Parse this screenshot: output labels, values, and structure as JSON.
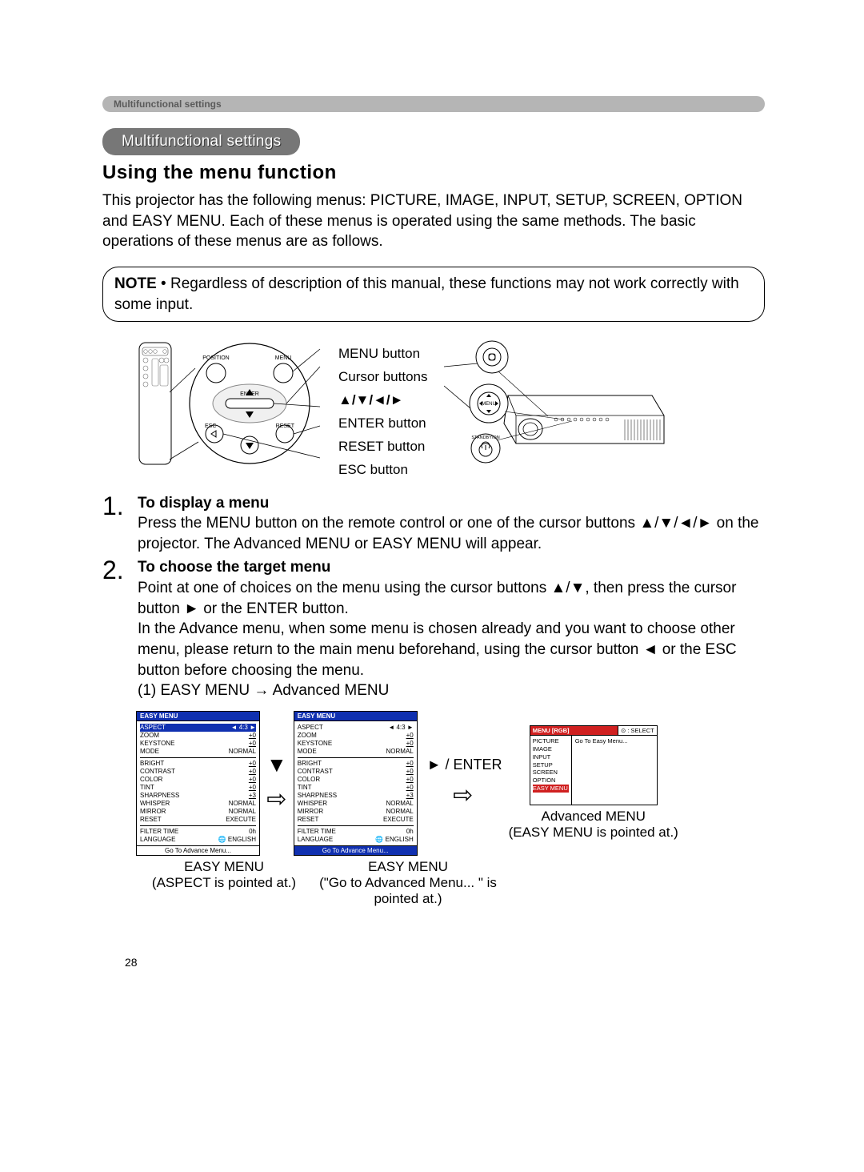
{
  "tab_label": "Multifunctional settings",
  "pill_label": "Multifunctional settings",
  "heading": "Using the menu function",
  "intro": "This projector has the following menus: PICTURE, IMAGE, INPUT, SETUP, SCREEN, OPTION and EASY MENU. Each of these menus is operated using the same methods. The basic operations of these menus are as follows.",
  "note_label": "NOTE",
  "note_text": " • Regardless of description of this manual, these functions may not work correctly with some input.",
  "diagram_labels": {
    "menu": "MENU button",
    "cursor": "Cursor buttons",
    "arrows": "▲/▼/◄/►",
    "enter": "ENTER button",
    "reset": "RESET button",
    "esc": "ESC button"
  },
  "remote_labels": {
    "position": "POSITION",
    "menu": "MENU",
    "enter": "ENTER",
    "esc": "ESC",
    "reset": "RESET"
  },
  "proj_labels": {
    "menu": "MENU",
    "standby": "STANDBY/ON"
  },
  "steps": [
    {
      "num": "1.",
      "title": "To display a menu",
      "body": "Press the MENU button on the remote control or one of the cursor buttons ▲/▼/◄/► on the projector. The Advanced MENU or EASY MENU will appear."
    },
    {
      "num": "2.",
      "title": "To choose the target menu",
      "body": "Point at one of choices on the menu using the cursor buttons ▲/▼, then press the cursor button ► or the ENTER button.\nIn the Advance menu, when some menu is chosen already and you want to choose other menu, please return to the main menu beforehand, using the cursor button ◄ or the ESC button before choosing the menu.\n(1) EASY MENU → Advanced MENU"
    }
  ],
  "easy_menu": {
    "title": "EASY MENU",
    "rows": [
      {
        "l": "ASPECT",
        "r": "◄   4:3   ►"
      },
      {
        "l": "ZOOM",
        "r": "+0",
        "u": true
      },
      {
        "l": "KEYSTONE",
        "r": "+0",
        "u": true
      },
      {
        "l": "MODE",
        "r": "NORMAL"
      },
      {
        "l": "BRIGHT",
        "r": "+0",
        "u": true
      },
      {
        "l": "CONTRAST",
        "r": "+0",
        "u": true
      },
      {
        "l": "COLOR",
        "r": "+0",
        "u": true
      },
      {
        "l": "TINT",
        "r": "+0",
        "u": true
      },
      {
        "l": "SHARPNESS",
        "r": "+3",
        "u": true
      },
      {
        "l": "WHISPER",
        "r": "NORMAL"
      },
      {
        "l": "MIRROR",
        "r": "NORMAL"
      },
      {
        "l": "RESET",
        "r": "EXECUTE"
      },
      {
        "l": "FILTER TIME",
        "r": "0h"
      },
      {
        "l": "LANGUAGE",
        "r": "ENGLISH",
        "globe": true
      }
    ],
    "footer": "Go To Advance Menu..."
  },
  "adv_menu": {
    "top_left": "MENU [RGB]",
    "top_right": "⊙ : SELECT",
    "side": [
      "PICTURE",
      "IMAGE",
      "INPUT",
      "SETUP",
      "SCREEN",
      "OPTION",
      "EASY MENU"
    ],
    "side_sel": "EASY MENU",
    "main": "Go To Easy Menu..."
  },
  "captions": {
    "c1a": "EASY MENU",
    "c1b": "(ASPECT is pointed at.)",
    "c2a": "EASY MENU",
    "c2b": "(\"Go to Advanced Menu... \" is pointed at.)",
    "c3a": "Advanced MENU",
    "c3b": "(EASY MENU is pointed at.)"
  },
  "enter_label": "► / ENTER",
  "page_number": "28",
  "colors": {
    "tabbar": "#b5b5b5",
    "pill": "#777777",
    "menu_blue": "#1030b0",
    "menu_red": "#d02020"
  }
}
